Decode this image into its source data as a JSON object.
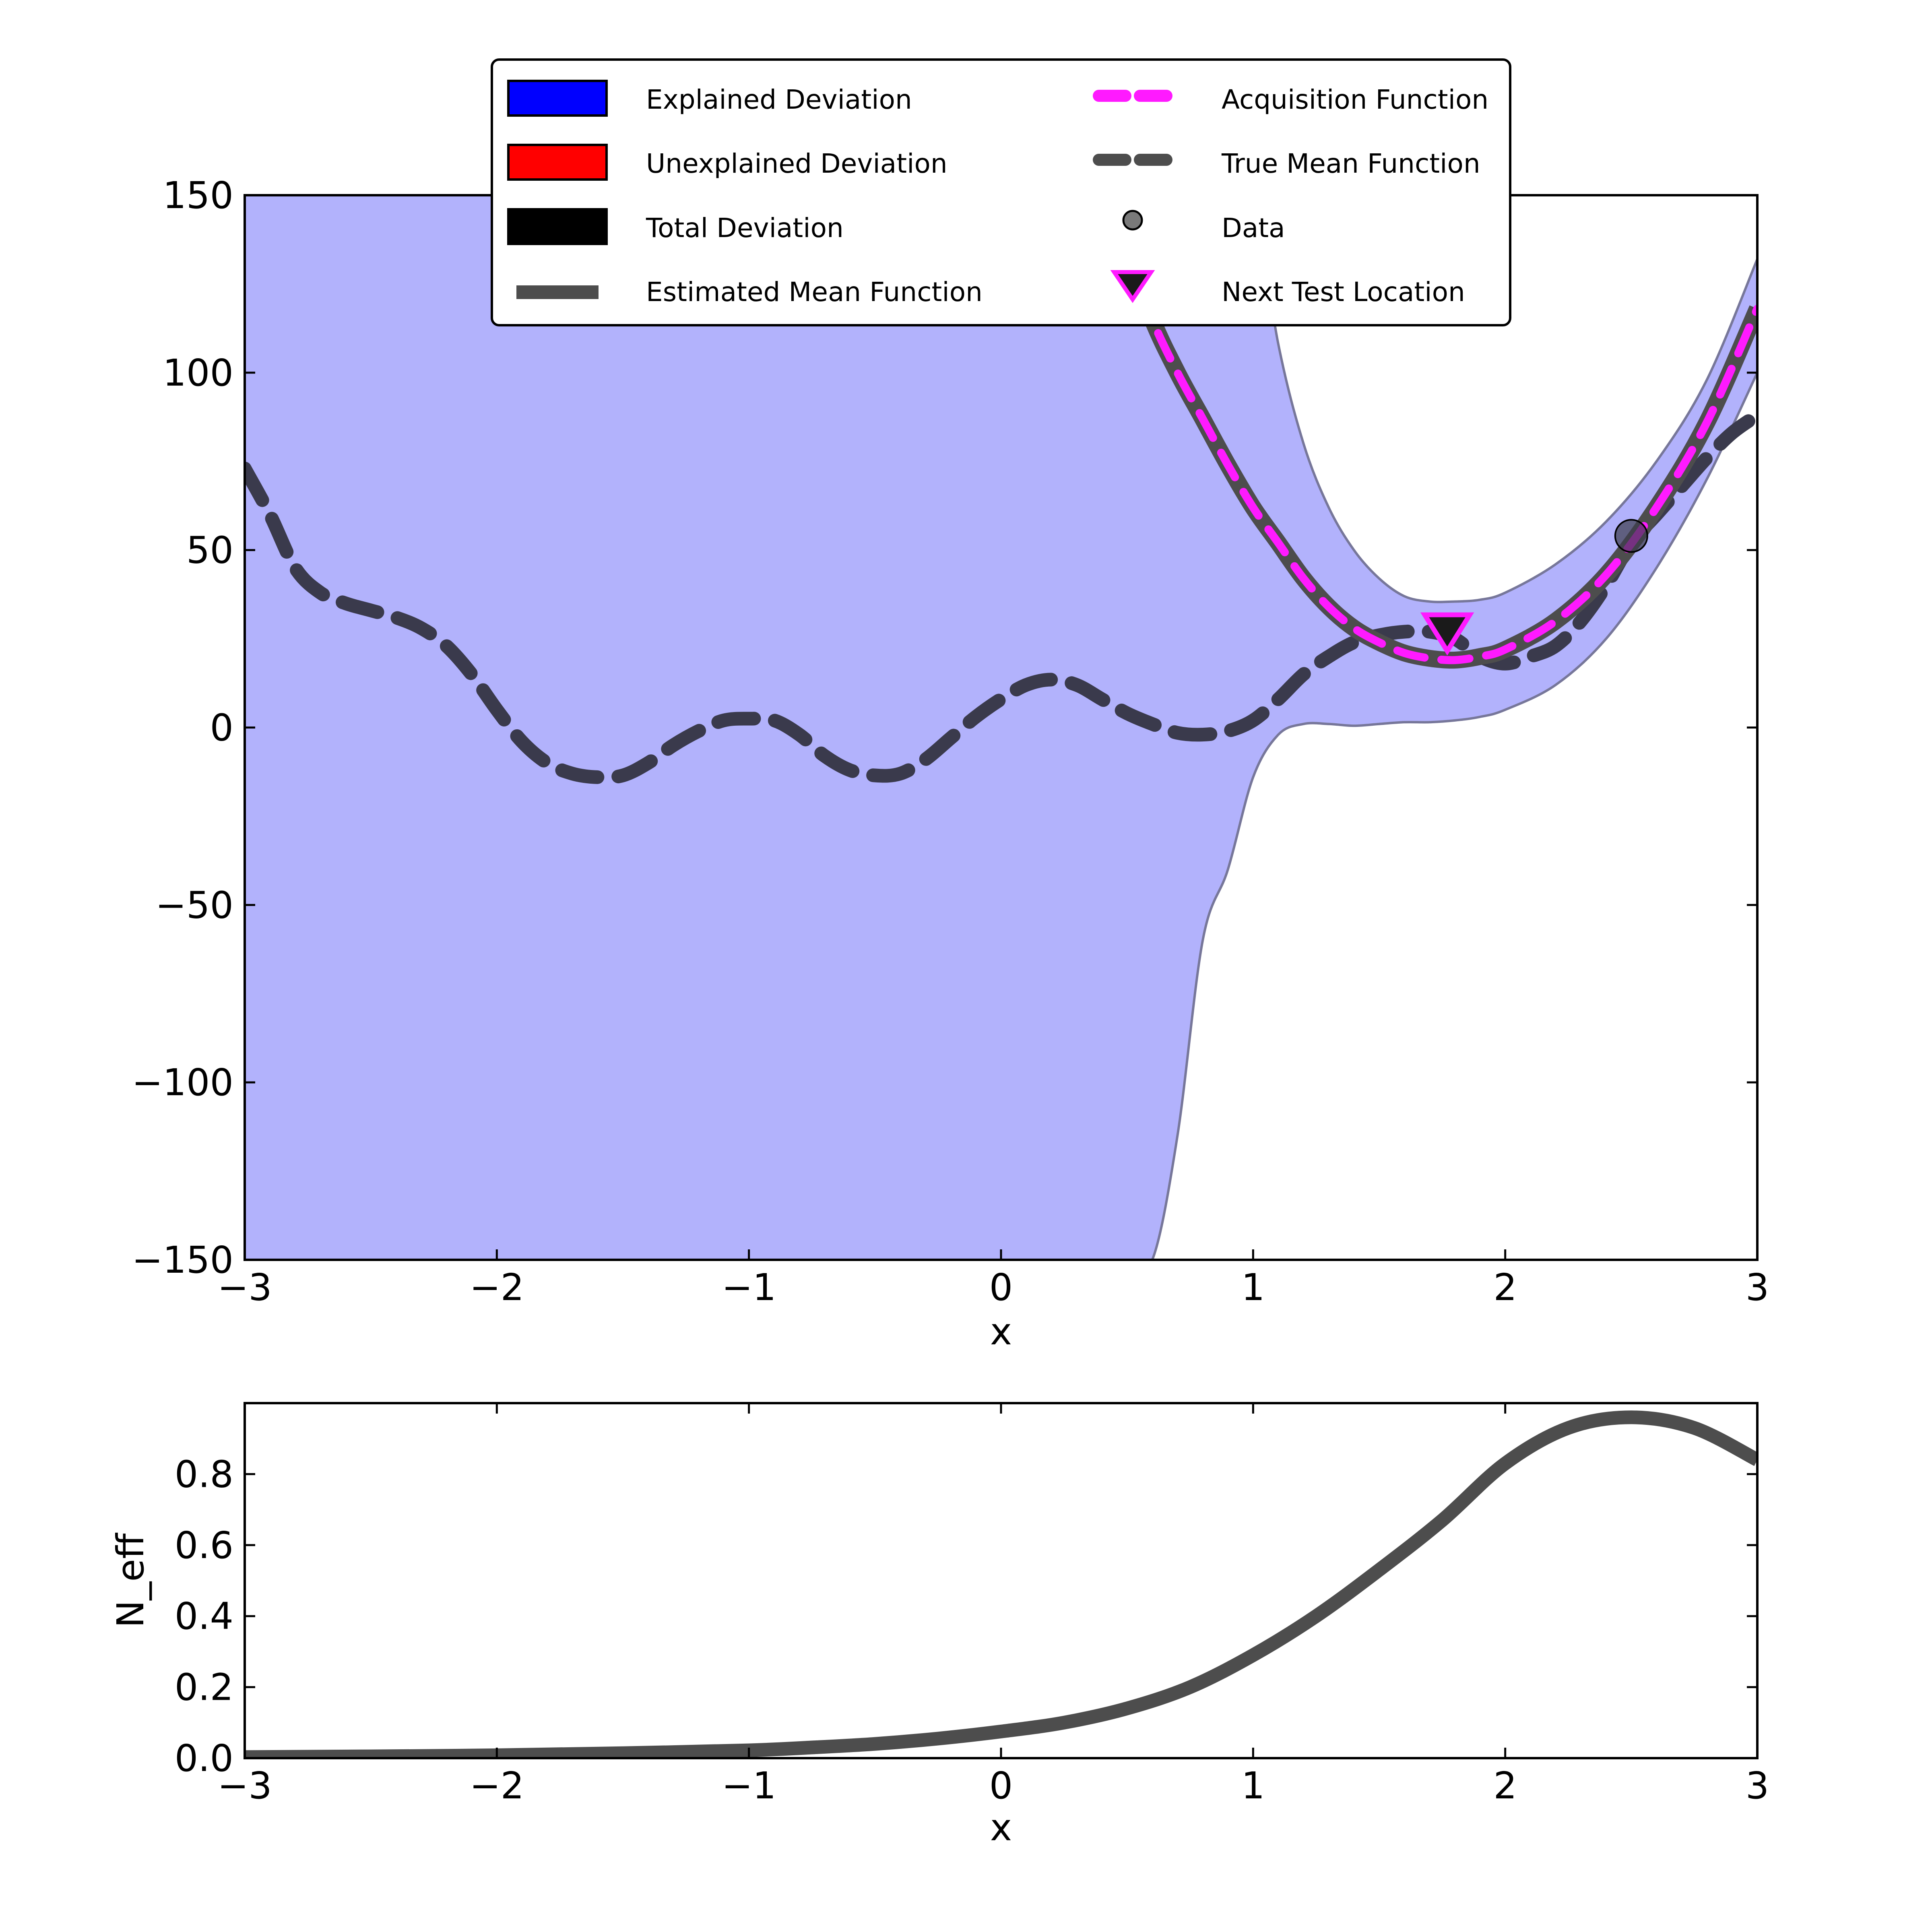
{
  "chart_data": [
    {
      "type": "line",
      "panel": "top",
      "xlabel": "x",
      "ylabel": "",
      "xlim": [
        -3,
        3
      ],
      "ylim": [
        -150,
        150
      ],
      "xticks": [
        -3,
        -2,
        -1,
        0,
        1,
        2,
        3
      ],
      "xtick_labels": [
        "−3",
        "−2",
        "−1",
        "0",
        "1",
        "2",
        "3"
      ],
      "yticks": [
        -150,
        -100,
        -50,
        0,
        50,
        100,
        150
      ],
      "ytick_labels": [
        "−150",
        "−100",
        "−50",
        "0",
        "50",
        "100",
        "150"
      ],
      "legend_position": "top-center",
      "colors": {
        "explained": "#0000ff",
        "unexplained": "#ff0000",
        "total": "#000000",
        "band_fill": "#b2b2fc",
        "band_edge": "#77779a",
        "estimated_mean": "#4d4d4d",
        "true_mean": "#3a3a4c",
        "acquisition": "#ff1aff",
        "data_point": "#3c3c4c",
        "next_test": "#ff1aff"
      },
      "legend": [
        {
          "label": "Explained Deviation",
          "marker": "patch-blue"
        },
        {
          "label": "Unexplained Deviation",
          "marker": "patch-red"
        },
        {
          "label": "Total Deviation",
          "marker": "patch-black"
        },
        {
          "label": "Estimated Mean Function",
          "marker": "line-gray"
        },
        {
          "label": "Acquisition Function",
          "marker": "dash-magenta"
        },
        {
          "label": "True Mean Function",
          "marker": "dash-gray"
        },
        {
          "label": "Data",
          "marker": "circle"
        },
        {
          "label": "Next Test Location",
          "marker": "triangle"
        }
      ],
      "band": {
        "x": [
          -3.0,
          0.0,
          0.5,
          0.6,
          0.7,
          0.8,
          0.9,
          1.0,
          1.1,
          1.2,
          1.3,
          1.4,
          1.5,
          1.6,
          1.7,
          1.8,
          1.9,
          2.0,
          2.2,
          2.4,
          2.6,
          2.8,
          3.0
        ],
        "upper": [
          150,
          150,
          150,
          150,
          150,
          150,
          150,
          150,
          108,
          80,
          62,
          50,
          42,
          37,
          35.5,
          35.5,
          36,
          38,
          46,
          58,
          75,
          98,
          132
        ],
        "lower": [
          -150,
          -150,
          -150,
          -150,
          -115,
          -60,
          -40,
          -14,
          -2,
          1,
          1,
          0.5,
          1,
          1.5,
          1.5,
          2,
          3,
          5,
          12,
          25,
          45,
          70,
          100
        ]
      },
      "estimated_mean": {
        "x": [
          0.5,
          0.6,
          0.7,
          0.8,
          0.9,
          1.0,
          1.1,
          1.2,
          1.3,
          1.4,
          1.5,
          1.6,
          1.7,
          1.8,
          1.9,
          2.0,
          2.2,
          2.4,
          2.6,
          2.8,
          3.0
        ],
        "y": [
          135,
          115,
          100,
          87,
          74,
          62,
          52,
          42,
          34,
          28,
          24,
          21,
          19.5,
          19,
          20,
          22,
          30,
          43,
          62,
          86,
          118
        ]
      },
      "acquisition": {
        "x": [
          0.5,
          0.6,
          0.7,
          0.8,
          0.9,
          1.0,
          1.1,
          1.2,
          1.3,
          1.4,
          1.5,
          1.6,
          1.7,
          1.8,
          1.9,
          2.0,
          2.2,
          2.4,
          2.6,
          2.8,
          3.0
        ],
        "y": [
          135,
          115,
          100,
          87,
          74,
          62,
          52,
          42,
          34,
          28,
          24,
          21,
          19.5,
          19,
          20,
          22,
          30,
          43,
          62,
          86,
          118
        ]
      },
      "true_mean": {
        "x": [
          -3.0,
          -2.9,
          -2.8,
          -2.7,
          -2.6,
          -2.5,
          -2.4,
          -2.3,
          -2.2,
          -2.1,
          -2.0,
          -1.9,
          -1.8,
          -1.7,
          -1.6,
          -1.5,
          -1.4,
          -1.3,
          -1.2,
          -1.1,
          -1.0,
          -0.9,
          -0.8,
          -0.7,
          -0.6,
          -0.5,
          -0.4,
          -0.3,
          -0.2,
          -0.1,
          0.0,
          0.1,
          0.2,
          0.3,
          0.4,
          0.5,
          0.6,
          0.7,
          0.8,
          0.9,
          1.0,
          1.1,
          1.2,
          1.3,
          1.4,
          1.5,
          1.6,
          1.7,
          1.8,
          1.9,
          2.0,
          2.1,
          2.2,
          2.3,
          2.4,
          2.5,
          2.6,
          2.7,
          2.8,
          2.9,
          3.0
        ],
        "y": [
          73,
          60,
          45,
          38,
          35,
          33,
          31,
          28,
          23,
          15,
          5,
          -4,
          -10,
          -13,
          -14,
          -13.5,
          -10,
          -5,
          -1,
          2,
          2.5,
          2,
          -2,
          -8,
          -12,
          -13.5,
          -13,
          -9,
          -3,
          3,
          8,
          12,
          13.5,
          12,
          8,
          4,
          1,
          -1.5,
          -2,
          -1,
          2,
          8,
          15,
          20,
          24,
          26,
          27,
          27,
          25,
          20,
          18,
          20,
          23,
          30,
          40,
          52,
          60,
          68,
          76,
          83,
          88
        ]
      },
      "data_points": [
        {
          "x": 2.5,
          "y": 54
        }
      ],
      "next_test_location": {
        "x": 1.77,
        "y": 27
      }
    },
    {
      "type": "line",
      "panel": "bottom",
      "xlabel": "x",
      "ylabel": "N_eff",
      "xlim": [
        -3,
        3
      ],
      "ylim": [
        0.0,
        1.0
      ],
      "xticks": [
        -3,
        -2,
        -1,
        0,
        1,
        2,
        3
      ],
      "xtick_labels": [
        "−3",
        "−2",
        "−1",
        "0",
        "1",
        "2",
        "3"
      ],
      "yticks": [
        0.0,
        0.2,
        0.4,
        0.6,
        0.8
      ],
      "ytick_labels": [
        "0.0",
        "0.2",
        "0.4",
        "0.6",
        "0.8"
      ],
      "series": [
        {
          "x": [
            -3.0,
            -2.5,
            -2.0,
            -1.5,
            -1.0,
            -0.75,
            -0.5,
            -0.25,
            0.0,
            0.25,
            0.5,
            0.75,
            1.0,
            1.25,
            1.5,
            1.75,
            2.0,
            2.25,
            2.5,
            2.75,
            3.0
          ],
          "y": [
            0.003,
            0.005,
            0.008,
            0.014,
            0.022,
            0.03,
            0.04,
            0.055,
            0.075,
            0.1,
            0.14,
            0.2,
            0.29,
            0.4,
            0.53,
            0.67,
            0.83,
            0.93,
            0.96,
            0.93,
            0.84
          ]
        }
      ]
    }
  ]
}
